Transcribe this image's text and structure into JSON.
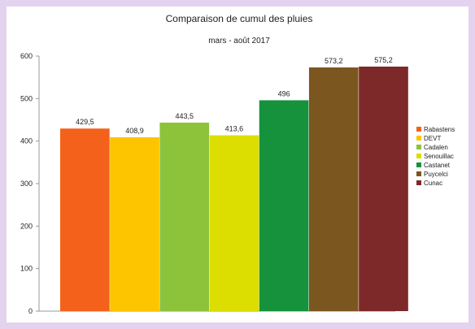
{
  "chart_data": {
    "type": "bar",
    "title": "Comparaison de cumul des pluies",
    "subtitle": "mars - août 2017",
    "xlabel": "",
    "ylabel": "",
    "ylim": [
      0,
      600
    ],
    "yticks": [
      "0",
      "100",
      "200",
      "300",
      "400",
      "500",
      "600"
    ],
    "grid": false,
    "legend_position": "right",
    "series": [
      {
        "name": "Rabastens",
        "value": 429.5,
        "label": "429,5",
        "color": "#f4611b"
      },
      {
        "name": "DEVT",
        "value": 408.9,
        "label": "408,9",
        "color": "#fdc400"
      },
      {
        "name": "Cadalen",
        "value": 443.5,
        "label": "443,5",
        "color": "#8dc33a"
      },
      {
        "name": "Senouillac",
        "value": 413.6,
        "label": "413,6",
        "color": "#dcdd00"
      },
      {
        "name": "Castanet",
        "value": 496,
        "label": "496",
        "color": "#16923d"
      },
      {
        "name": "Puycelci",
        "value": 573.2,
        "label": "573,2",
        "color": "#7b561f"
      },
      {
        "name": "Cunac",
        "value": 575.2,
        "label": "575,2",
        "color": "#7e2929"
      }
    ]
  }
}
